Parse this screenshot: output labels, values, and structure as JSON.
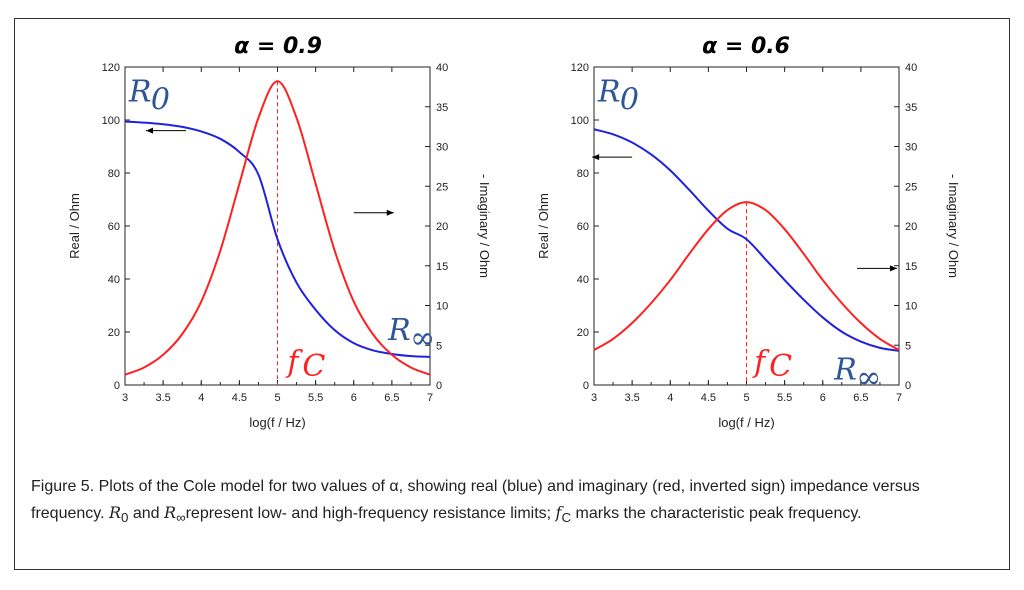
{
  "chart_data": [
    {
      "type": "line",
      "title": "α = 0.9",
      "xlabel": "log(f / Hz)",
      "ylabel_left": "Real / Ohm",
      "ylabel_right": "- Imaginary / Ohm",
      "xlim": [
        3,
        7
      ],
      "ylim_left": [
        0,
        120
      ],
      "ylim_right": [
        0,
        40
      ],
      "x_ticks": [
        "3",
        "3.5",
        "4",
        "4.5",
        "5",
        "5.5",
        "6",
        "6.5",
        "7"
      ],
      "y_left_ticks": [
        "0",
        "20",
        "40",
        "60",
        "80",
        "100",
        "120"
      ],
      "y_right_ticks": [
        "0",
        "5",
        "10",
        "15",
        "20",
        "25",
        "30",
        "35",
        "40"
      ],
      "x": [
        3.0,
        3.25,
        3.5,
        3.75,
        4.0,
        4.25,
        4.5,
        4.75,
        5.0,
        5.25,
        5.5,
        5.75,
        6.0,
        6.25,
        6.5,
        6.75,
        7.0
      ],
      "series": [
        {
          "axis": "left",
          "color": "#2020e0",
          "values": [
            99.4,
            99.0,
            98.4,
            97.4,
            95.7,
            92.9,
            87.9,
            79.4,
            55.0,
            38.6,
            28.4,
            20.7,
            15.8,
            13.1,
            11.7,
            10.9,
            10.6
          ]
        },
        {
          "axis": "right",
          "color": "#ff2020",
          "values": [
            1.3,
            2.2,
            3.8,
            6.4,
            10.5,
            16.9,
            25.3,
            33.6,
            38.2,
            33.6,
            25.3,
            16.9,
            10.5,
            6.4,
            3.8,
            2.2,
            1.3
          ]
        }
      ],
      "fc": 5,
      "annotations": {
        "r0": "R",
        "r0_sub": "0",
        "rinf": "R",
        "rinf_sub": "∞",
        "fc": "f",
        "fc_sub": "C"
      },
      "colors": {
        "real": "#2020e0",
        "imag": "#ff2020",
        "label": "#2f5597"
      }
    },
    {
      "type": "line",
      "title": "α = 0.6",
      "xlabel": "log(f / Hz)",
      "ylabel_left": "Real / Ohm",
      "ylabel_right": "- Imaginary / Ohm",
      "xlim": [
        3,
        7
      ],
      "ylim_left": [
        0,
        120
      ],
      "ylim_right": [
        0,
        40
      ],
      "x_ticks": [
        "3",
        "3.5",
        "4",
        "4.5",
        "5",
        "5.5",
        "6",
        "6.5",
        "7"
      ],
      "y_left_ticks": [
        "0",
        "20",
        "40",
        "60",
        "80",
        "100",
        "120"
      ],
      "y_right_ticks": [
        "0",
        "5",
        "10",
        "15",
        "20",
        "25",
        "30",
        "35",
        "40"
      ],
      "x": [
        3.0,
        3.25,
        3.5,
        3.75,
        4.0,
        4.25,
        4.5,
        4.75,
        5.0,
        5.25,
        5.5,
        5.75,
        6.0,
        6.25,
        6.5,
        6.75,
        7.0
      ],
      "series": [
        {
          "axis": "left",
          "color": "#2020e0",
          "values": [
            96.5,
            94.6,
            91.5,
            87.0,
            81.0,
            73.6,
            65.8,
            59.0,
            55.0,
            47.4,
            39.6,
            32.2,
            25.5,
            20.1,
            16.4,
            14.0,
            12.9
          ]
        },
        {
          "axis": "right",
          "color": "#ff2020",
          "values": [
            4.4,
            5.8,
            7.8,
            10.3,
            13.2,
            16.5,
            19.6,
            22.0,
            23.0,
            22.0,
            19.6,
            16.5,
            13.2,
            10.3,
            7.8,
            5.8,
            4.4
          ]
        }
      ],
      "fc": 5,
      "annotations": {
        "r0": "R",
        "r0_sub": "0",
        "rinf": "R",
        "rinf_sub": "∞",
        "fc": "f",
        "fc_sub": "C"
      },
      "colors": {
        "real": "#2020e0",
        "imag": "#ff2020",
        "label": "#2f5597"
      }
    }
  ],
  "caption": {
    "label": "Figure 5",
    "part1": ". Plots of the Cole model for two values of α, showing real (blue) and imaginary (red, inverted sign) impedance versus frequency. ",
    "r0": "R",
    "r0_sub": "0",
    "and": " and ",
    "rinf": "R",
    "rinf_sub": "∞",
    "part2": "represent low- and high-frequency resistance limits; ",
    "fc": "f",
    "fc_sub": "C",
    "part3": " marks the characteristic peak frequency."
  }
}
